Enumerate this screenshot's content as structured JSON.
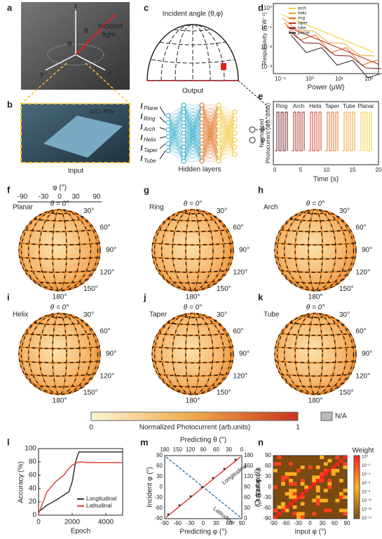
{
  "panels": {
    "a": {
      "letter": "a",
      "axes": [
        "x",
        "y",
        "z"
      ],
      "angles": [
        "θ",
        "φ"
      ],
      "label": [
        "Incident",
        "light"
      ]
    },
    "b": {
      "letter": "b",
      "label": "Si/Cr PDs",
      "caption": "Input"
    },
    "c": {
      "letter": "c",
      "title": "Incident angle (θ,φ)",
      "caption": "Output",
      "input_symbol": "I",
      "inputs": [
        "Plane",
        "Ring",
        "Arch",
        "Helix",
        "Taper",
        "Tube"
      ],
      "hidden": "Hidden layers",
      "outputs": [
        "θ",
        "φ"
      ]
    },
    "d": {
      "letter": "d",
      "ylabel": "Responsivity (A W⁻¹)",
      "xlabel": "Power (μW)",
      "yticks": [
        "10⁰",
        "10⁻¹",
        "10⁻²",
        "10⁻³"
      ],
      "xticks": [
        "10⁻¹",
        "10⁰",
        "10¹",
        "10²"
      ],
      "series": [
        {
          "name": "arch",
          "color": "#f2d13a"
        },
        {
          "name": "helix",
          "color": "#f0a030"
        },
        {
          "name": "ring",
          "color": "#e07020"
        },
        {
          "name": "taper",
          "color": "#c03020"
        },
        {
          "name": "tube",
          "color": "#801818"
        },
        {
          "name": "planar",
          "color": "#303030"
        }
      ]
    },
    "e": {
      "letter": "e",
      "ylabel": [
        "Normalized",
        "Photocurrent (arb. units)"
      ],
      "xlabel": "Time (s)",
      "xticks": [
        "0",
        "5",
        "10",
        "15",
        "20"
      ],
      "labels": [
        "Ring",
        "Arch",
        "Helix",
        "Taper",
        "Tube",
        "Planar"
      ]
    },
    "f": {
      "phi_label": "φ (°)",
      "phi_ticks": [
        "-90",
        "-30",
        "0",
        "30",
        "90"
      ]
    },
    "spheres": [
      {
        "letter": "f",
        "name": "Planar",
        "angles": [
          "θ = 0°",
          "30°",
          "60°",
          "90°",
          "120°",
          "150°",
          "180°"
        ]
      },
      {
        "letter": "g",
        "name": "Ring",
        "angles": [
          "θ = 0°",
          "30°",
          "60°",
          "90°",
          "120°",
          "150°",
          "180°"
        ]
      },
      {
        "letter": "h",
        "name": "Arch",
        "angles": [
          "θ = 0°",
          "30°",
          "60°",
          "90°",
          "120°",
          "150°",
          "180°"
        ]
      },
      {
        "letter": "i",
        "name": "Helix",
        "angles": [
          "θ = 0°",
          "30°",
          "60°",
          "90°",
          "120°",
          "150°",
          "180°"
        ]
      },
      {
        "letter": "j",
        "name": "Taper",
        "angles": [
          "θ = 0°",
          "30°",
          "60°",
          "90°",
          "120°",
          "150°",
          "180°"
        ]
      },
      {
        "letter": "k",
        "name": "Tube",
        "angles": [
          "θ = 0°",
          "30°",
          "60°",
          "90°",
          "120°",
          "150°",
          "180°"
        ]
      }
    ],
    "colorbar": {
      "min": "0",
      "max": "1",
      "label": "Normalized Photocurrent (arb.units)",
      "na": "N/A"
    },
    "l": {
      "letter": "l",
      "type": "line",
      "ylabel": "Accuracy (%)",
      "xlabel": "Epoch",
      "xlim": [
        0,
        5000
      ],
      "ylim": [
        0,
        100
      ],
      "xticks": [
        0,
        2000,
        4000
      ],
      "yticks": [
        0,
        20,
        40,
        60,
        80,
        100
      ],
      "x": [
        0,
        500,
        1000,
        1500,
        1800,
        2000,
        2200,
        2400,
        3000,
        4000,
        5000
      ],
      "series": [
        {
          "name": "Longitudinal",
          "color": "#333333",
          "values": [
            5,
            15,
            22,
            30,
            35,
            50,
            80,
            95,
            95,
            95,
            95
          ]
        },
        {
          "name": "Latitudinal",
          "color": "#e04040",
          "values": [
            2,
            35,
            50,
            60,
            70,
            75,
            78,
            80,
            79,
            79,
            79
          ]
        }
      ]
    },
    "m": {
      "letter": "m",
      "top_label": "Predicting θ (°)",
      "top_ticks": [
        "180",
        "150",
        "120",
        "90",
        "60",
        "30",
        "0"
      ],
      "left_label": "Incident φ (°)",
      "left_ticks": [
        "90",
        "60",
        "30",
        "0",
        "-30",
        "-60",
        "-90"
      ],
      "right_label": "Incident θ (°)",
      "right_ticks": [
        "180",
        "150",
        "120",
        "90",
        "60",
        "30",
        "0"
      ],
      "bottom_label": "Predicting φ (°)",
      "bottom_ticks": [
        "-90",
        "-60",
        "-30",
        "0",
        "30",
        "60",
        "90"
      ],
      "lines": [
        "Longitudinal",
        "Latitudinal"
      ]
    },
    "n": {
      "letter": "n",
      "title": "Weight",
      "ylabel": "Output φ (°)",
      "xlabel": "Input φ (°)",
      "ticks": [
        "-90",
        "-60",
        "-30",
        "0",
        "30",
        "60",
        "90"
      ],
      "cticks": [
        "10⁰",
        "10⁻²",
        "10⁻⁴",
        "10⁻⁶",
        "10⁻⁸",
        "10⁻¹⁰",
        "10⁻¹²",
        "10⁻¹⁴"
      ]
    }
  }
}
